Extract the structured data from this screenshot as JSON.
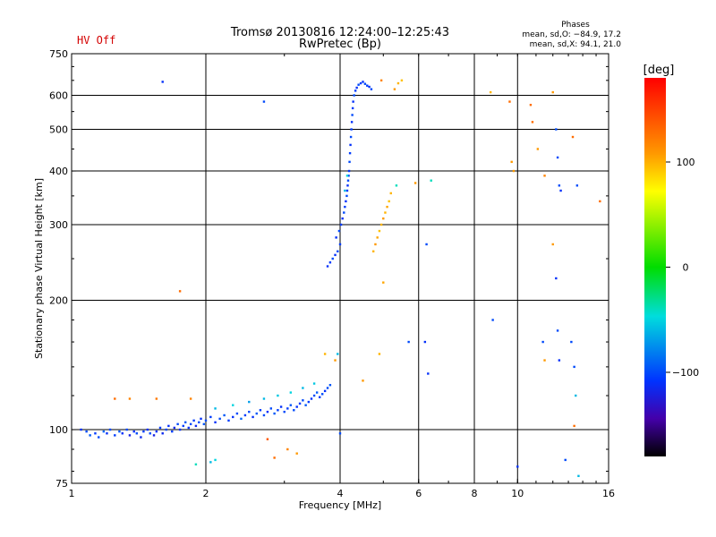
{
  "header": {
    "status": "HV Off",
    "status_color": "#d40000",
    "title": "Tromsø 20130816 12:24:00–12:25:43",
    "subtitle": "RwPretec (Bp)",
    "phases_title": "Phases",
    "phases_line1": "mean, sd,O: −84.9, 17.2",
    "phases_line2": "mean, sd,X:  94.1, 21.0"
  },
  "colorbar": {
    "label": "[deg]",
    "ticks": [
      {
        "value": 100,
        "label": "100"
      },
      {
        "value": 0,
        "label": "0"
      },
      {
        "value": -100,
        "label": "−100"
      }
    ],
    "range": [
      -180,
      180
    ]
  },
  "chart_data": {
    "type": "scatter",
    "xlabel": "Frequency [MHz]",
    "ylabel": "Stationary phase Virtual Height [km]",
    "x_scale": "log",
    "y_scale": "log",
    "xlim": [
      1,
      16
    ],
    "ylim": [
      75,
      750
    ],
    "x_ticks": [
      {
        "value": 1,
        "label": "1"
      },
      {
        "value": 2,
        "label": "2"
      },
      {
        "value": 4,
        "label": "4"
      },
      {
        "value": 6,
        "label": "6"
      },
      {
        "value": 8,
        "label": "8"
      },
      {
        "value": 10,
        "label": "10"
      },
      {
        "value": 16,
        "label": "16"
      }
    ],
    "y_ticks": [
      {
        "value": 75,
        "label": "75"
      },
      {
        "value": 100,
        "label": "100"
      },
      {
        "value": 200,
        "label": "200"
      },
      {
        "value": 300,
        "label": "300"
      },
      {
        "value": 400,
        "label": "400"
      },
      {
        "value": 500,
        "label": "500"
      },
      {
        "value": 600,
        "label": "600"
      },
      {
        "value": 750,
        "label": "750"
      }
    ],
    "grid_x": [
      2,
      4,
      6,
      8,
      10
    ],
    "grid_y": [
      100,
      200,
      300,
      400,
      500,
      600
    ],
    "grid": true,
    "points": [
      [
        1.05,
        100,
        -110
      ],
      [
        1.08,
        99,
        -100
      ],
      [
        1.1,
        97,
        -95
      ],
      [
        1.13,
        98,
        -105
      ],
      [
        1.15,
        96,
        -100
      ],
      [
        1.18,
        99,
        -90
      ],
      [
        1.2,
        98,
        -110
      ],
      [
        1.22,
        100,
        -100
      ],
      [
        1.25,
        97,
        -105
      ],
      [
        1.28,
        99,
        -95
      ],
      [
        1.3,
        98,
        -110
      ],
      [
        1.33,
        100,
        -100
      ],
      [
        1.35,
        97,
        -120
      ],
      [
        1.38,
        99,
        -110
      ],
      [
        1.4,
        98,
        -100
      ],
      [
        1.43,
        96,
        -115
      ],
      [
        1.45,
        99,
        -105
      ],
      [
        1.48,
        100,
        -110
      ],
      [
        1.5,
        98,
        -100
      ],
      [
        1.53,
        97,
        -120
      ],
      [
        1.55,
        99,
        -110
      ],
      [
        1.58,
        101,
        -105
      ],
      [
        1.6,
        98,
        -115
      ],
      [
        1.63,
        100,
        -100
      ],
      [
        1.65,
        102,
        -110
      ],
      [
        1.68,
        99,
        -105
      ],
      [
        1.7,
        101,
        -115
      ],
      [
        1.73,
        103,
        -100
      ],
      [
        1.75,
        100,
        -110
      ],
      [
        1.78,
        102,
        -105
      ],
      [
        1.8,
        104,
        -95
      ],
      [
        1.83,
        101,
        -110
      ],
      [
        1.85,
        103,
        -100
      ],
      [
        1.88,
        105,
        -105
      ],
      [
        1.9,
        102,
        -115
      ],
      [
        1.93,
        104,
        -100
      ],
      [
        1.95,
        106,
        -110
      ],
      [
        1.98,
        103,
        -95
      ],
      [
        2.0,
        105,
        -100
      ],
      [
        2.05,
        107,
        -105
      ],
      [
        2.1,
        104,
        -110
      ],
      [
        2.15,
        106,
        -100
      ],
      [
        2.2,
        108,
        -95
      ],
      [
        2.25,
        105,
        -105
      ],
      [
        2.3,
        107,
        -110
      ],
      [
        2.35,
        109,
        -100
      ],
      [
        2.4,
        106,
        -90
      ],
      [
        2.45,
        108,
        -105
      ],
      [
        2.5,
        110,
        -100
      ],
      [
        2.55,
        107,
        -110
      ],
      [
        2.6,
        109,
        -95
      ],
      [
        2.65,
        111,
        -105
      ],
      [
        2.7,
        108,
        -100
      ],
      [
        2.75,
        110,
        -110
      ],
      [
        2.8,
        112,
        -100
      ],
      [
        2.85,
        109,
        -95
      ],
      [
        2.9,
        111,
        -105
      ],
      [
        2.95,
        113,
        -110
      ],
      [
        3.0,
        110,
        -100
      ],
      [
        3.05,
        112,
        -105
      ],
      [
        3.1,
        114,
        -95
      ],
      [
        3.15,
        111,
        -100
      ],
      [
        3.2,
        113,
        -110
      ],
      [
        3.25,
        115,
        -105
      ],
      [
        3.3,
        117,
        -100
      ],
      [
        3.35,
        114,
        -95
      ],
      [
        3.4,
        116,
        -105
      ],
      [
        3.45,
        118,
        -110
      ],
      [
        3.5,
        120,
        -100
      ],
      [
        3.55,
        122,
        -95
      ],
      [
        3.6,
        119,
        -105
      ],
      [
        3.65,
        121,
        -100
      ],
      [
        3.7,
        123,
        -110
      ],
      [
        3.75,
        125,
        -100
      ],
      [
        3.8,
        127,
        -95
      ],
      [
        2.1,
        112,
        -60
      ],
      [
        2.3,
        114,
        -50
      ],
      [
        2.5,
        116,
        -70
      ],
      [
        2.7,
        118,
        -60
      ],
      [
        2.9,
        120,
        -55
      ],
      [
        3.1,
        122,
        -50
      ],
      [
        3.3,
        125,
        -60
      ],
      [
        3.5,
        128,
        -55
      ],
      [
        3.75,
        240,
        -110
      ],
      [
        3.8,
        245,
        -105
      ],
      [
        3.85,
        250,
        -100
      ],
      [
        3.9,
        255,
        -110
      ],
      [
        3.95,
        260,
        -100
      ],
      [
        4.0,
        270,
        -105
      ],
      [
        3.92,
        280,
        -110
      ],
      [
        3.98,
        290,
        -100
      ],
      [
        4.02,
        300,
        -105
      ],
      [
        4.05,
        310,
        -110
      ],
      [
        4.08,
        320,
        -100
      ],
      [
        4.1,
        330,
        -105
      ],
      [
        4.12,
        340,
        -110
      ],
      [
        4.14,
        350,
        -100
      ],
      [
        4.15,
        360,
        -105
      ],
      [
        4.16,
        370,
        -110
      ],
      [
        4.17,
        380,
        -100
      ],
      [
        4.18,
        390,
        -105
      ],
      [
        4.19,
        400,
        -110
      ],
      [
        4.2,
        420,
        -100
      ],
      [
        4.21,
        440,
        -105
      ],
      [
        4.22,
        460,
        -110
      ],
      [
        4.23,
        480,
        -100
      ],
      [
        4.24,
        500,
        -105
      ],
      [
        4.25,
        520,
        -110
      ],
      [
        4.26,
        540,
        -100
      ],
      [
        4.27,
        560,
        -105
      ],
      [
        4.28,
        580,
        -110
      ],
      [
        4.3,
        600,
        -100
      ],
      [
        4.33,
        615,
        -105
      ],
      [
        4.36,
        625,
        -110
      ],
      [
        4.4,
        635,
        -100
      ],
      [
        4.45,
        640,
        -105
      ],
      [
        4.5,
        645,
        -110
      ],
      [
        4.55,
        638,
        -100
      ],
      [
        4.6,
        632,
        -105
      ],
      [
        4.65,
        628,
        -110
      ],
      [
        4.7,
        620,
        -100
      ],
      [
        4.1,
        360,
        -60
      ],
      [
        4.15,
        390,
        -50
      ],
      [
        4.75,
        260,
        100
      ],
      [
        4.8,
        270,
        110
      ],
      [
        4.85,
        280,
        105
      ],
      [
        4.9,
        290,
        95
      ],
      [
        4.95,
        300,
        100
      ],
      [
        5.0,
        310,
        110
      ],
      [
        5.05,
        320,
        100
      ],
      [
        5.1,
        330,
        105
      ],
      [
        5.15,
        340,
        95
      ],
      [
        5.2,
        355,
        100
      ],
      [
        5.3,
        620,
        110
      ],
      [
        5.4,
        640,
        100
      ],
      [
        5.5,
        650,
        95
      ],
      [
        4.95,
        650,
        120
      ],
      [
        5.35,
        370,
        -40
      ],
      [
        1.25,
        118,
        130
      ],
      [
        1.35,
        118,
        120
      ],
      [
        1.55,
        118,
        125
      ],
      [
        1.85,
        118,
        120
      ],
      [
        1.75,
        210,
        130
      ],
      [
        2.75,
        95,
        140
      ],
      [
        2.85,
        86,
        130
      ],
      [
        3.05,
        90,
        120
      ],
      [
        3.2,
        88,
        110
      ],
      [
        3.7,
        150,
        100
      ],
      [
        3.95,
        150,
        -60
      ],
      [
        3.9,
        145,
        110
      ],
      [
        4.9,
        150,
        100
      ],
      [
        4.5,
        130,
        110
      ],
      [
        5.0,
        220,
        105
      ],
      [
        5.9,
        375,
        110
      ],
      [
        6.4,
        380,
        -40
      ],
      [
        1.6,
        645,
        -110
      ],
      [
        2.7,
        580,
        -100
      ],
      [
        4.0,
        98,
        -100
      ],
      [
        2.05,
        84,
        -60
      ],
      [
        2.1,
        85,
        -50
      ],
      [
        1.9,
        83,
        -40
      ],
      [
        5.7,
        160,
        -100
      ],
      [
        6.2,
        160,
        -110
      ],
      [
        6.3,
        135,
        -110
      ],
      [
        6.25,
        270,
        -100
      ],
      [
        8.8,
        180,
        -100
      ],
      [
        8.7,
        610,
        100
      ],
      [
        9.6,
        580,
        130
      ],
      [
        9.7,
        420,
        110
      ],
      [
        9.8,
        400,
        110
      ],
      [
        10.7,
        570,
        130
      ],
      [
        10.8,
        520,
        130
      ],
      [
        11.1,
        450,
        110
      ],
      [
        11.5,
        390,
        120
      ],
      [
        12.0,
        610,
        110
      ],
      [
        12.2,
        500,
        -100
      ],
      [
        12.3,
        430,
        -100
      ],
      [
        12.4,
        370,
        -100
      ],
      [
        12.5,
        360,
        -110
      ],
      [
        12.0,
        270,
        110
      ],
      [
        12.2,
        225,
        -110
      ],
      [
        12.3,
        170,
        -100
      ],
      [
        11.4,
        160,
        -100
      ],
      [
        11.5,
        145,
        110
      ],
      [
        12.4,
        145,
        -110
      ],
      [
        13.2,
        160,
        -100
      ],
      [
        13.4,
        140,
        -100
      ],
      [
        13.5,
        120,
        -60
      ],
      [
        13.4,
        102,
        130
      ],
      [
        13.6,
        370,
        -100
      ],
      [
        13.3,
        480,
        130
      ],
      [
        15.3,
        340,
        130
      ],
      [
        12.8,
        85,
        -100
      ],
      [
        13.7,
        78,
        -60
      ],
      [
        10.0,
        82,
        -110
      ]
    ]
  }
}
